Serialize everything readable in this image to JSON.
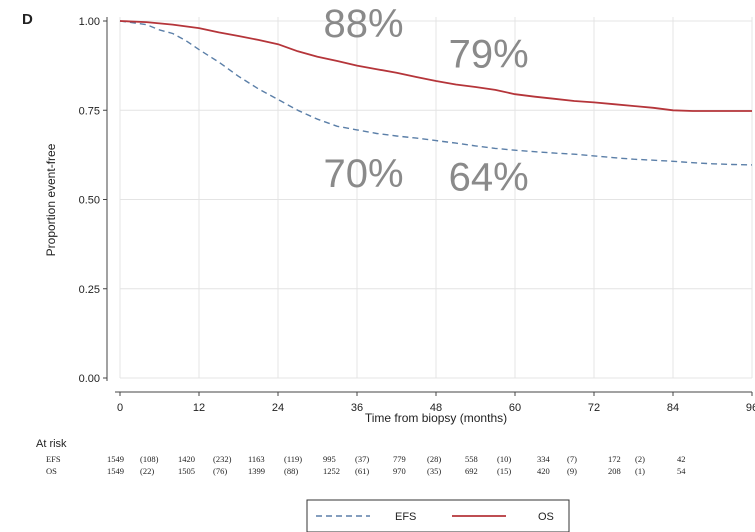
{
  "panel_label": "D",
  "chart_data": {
    "type": "line",
    "xlabel": "Time from biopsy (months)",
    "ylabel": "Proportion event-free",
    "xlim": [
      0,
      96
    ],
    "ylim": [
      0,
      1
    ],
    "x_ticks": [
      0,
      12,
      24,
      36,
      48,
      60,
      72,
      84,
      96
    ],
    "x_tick_labels": [
      "0",
      "12",
      "24",
      "36",
      "48",
      "60",
      "72",
      "84",
      "96"
    ],
    "y_ticks": [
      0,
      0.25,
      0.5,
      0.75,
      1.0
    ],
    "y_tick_labels": [
      "0.00",
      "0.25",
      "0.50",
      "0.75",
      "1.00"
    ],
    "grid": true,
    "series": [
      {
        "name": "EFS",
        "color": "#5b7fa8",
        "dash": true,
        "x": [
          0,
          4,
          6,
          8,
          10,
          12,
          15,
          18,
          21,
          24,
          27,
          30,
          33,
          36,
          39,
          42,
          45,
          48,
          51,
          54,
          57,
          60,
          63,
          66,
          69,
          72,
          75,
          78,
          81,
          84,
          87,
          90,
          93,
          96
        ],
        "y": [
          1.0,
          0.99,
          0.975,
          0.965,
          0.945,
          0.92,
          0.885,
          0.845,
          0.81,
          0.78,
          0.75,
          0.725,
          0.705,
          0.695,
          0.685,
          0.678,
          0.672,
          0.665,
          0.658,
          0.65,
          0.643,
          0.638,
          0.634,
          0.63,
          0.627,
          0.622,
          0.617,
          0.613,
          0.61,
          0.607,
          0.603,
          0.6,
          0.598,
          0.597
        ]
      },
      {
        "name": "OS",
        "color": "#b5353a",
        "dash": false,
        "x": [
          0,
          4,
          8,
          12,
          15,
          18,
          21,
          24,
          27,
          30,
          33,
          36,
          39,
          42,
          45,
          48,
          51,
          54,
          57,
          60,
          63,
          66,
          69,
          72,
          75,
          78,
          81,
          84,
          87,
          90,
          93,
          96
        ],
        "y": [
          1.0,
          0.997,
          0.99,
          0.98,
          0.968,
          0.958,
          0.947,
          0.935,
          0.915,
          0.9,
          0.888,
          0.875,
          0.865,
          0.855,
          0.843,
          0.832,
          0.822,
          0.815,
          0.807,
          0.795,
          0.788,
          0.782,
          0.776,
          0.772,
          0.767,
          0.762,
          0.757,
          0.75,
          0.748,
          0.748,
          0.748,
          0.748
        ]
      }
    ],
    "annotations": [
      {
        "text": "88%",
        "x": 37,
        "y": 0.955
      },
      {
        "text": "79%",
        "x": 56,
        "y": 0.87
      },
      {
        "text": "70%",
        "x": 37,
        "y": 0.535
      },
      {
        "text": "64%",
        "x": 56,
        "y": 0.525
      }
    ],
    "at_risk": {
      "title": "At risk",
      "rows": [
        {
          "label": "EFS",
          "values": [
            "1549",
            "(108)",
            "1420",
            "(232)",
            "1163",
            "(119)",
            "995",
            "(37)",
            "779",
            "(28)",
            "558",
            "(10)",
            "334",
            "(7)",
            "172",
            "(2)",
            "42"
          ]
        },
        {
          "label": "OS",
          "values": [
            "1549",
            "(22)",
            "1505",
            "(76)",
            "1399",
            "(88)",
            "1252",
            "(61)",
            "970",
            "(35)",
            "692",
            "(15)",
            "420",
            "(9)",
            "208",
            "(1)",
            "54"
          ]
        }
      ]
    },
    "legend": {
      "position": "bottom-center",
      "entries": [
        {
          "label": "EFS",
          "color": "#5b7fa8",
          "dash": true
        },
        {
          "label": "OS",
          "color": "#b5353a",
          "dash": false
        }
      ]
    }
  }
}
